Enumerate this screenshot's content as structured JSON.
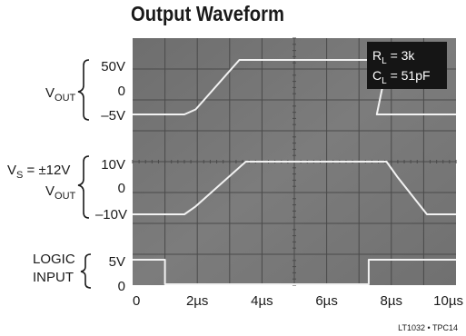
{
  "chart_data": {
    "type": "line",
    "title": "Output Waveform",
    "x_unit": "µs",
    "xlim": [
      0,
      10
    ],
    "x_tick_labels": [
      "0",
      "2µs",
      "4µs",
      "6µs",
      "8µs",
      "10µs"
    ],
    "x_tick_values": [
      0,
      2,
      4,
      6,
      8,
      10
    ],
    "annotation": {
      "rl": "R",
      "rl_sub": "L",
      "rl_val": " = 3k",
      "cl": "C",
      "cl_sub": "L",
      "cl_val": " = 51pF"
    },
    "traces": [
      {
        "label_main": "V",
        "label_sub": "OUT",
        "prefix_main": "",
        "prefix_sub": "",
        "prefix_rest": "",
        "tick_labels": [
          "50V",
          "0",
          "–5V"
        ],
        "tick_values": [
          50,
          0,
          -5
        ],
        "ylim": [
          -5,
          50
        ],
        "x": [
          0,
          1.6,
          1.95,
          3.3,
          7.9,
          7.55,
          10
        ],
        "y": [
          -5,
          -5,
          0,
          50,
          50,
          -5,
          -5
        ]
      },
      {
        "label_main": "V",
        "label_sub": "OUT",
        "prefix_main": "V",
        "prefix_sub": "S",
        "prefix_rest": " = ±12V",
        "tick_labels": [
          "10V",
          "0",
          "–10V"
        ],
        "tick_values": [
          10,
          0,
          -10
        ],
        "ylim": [
          -10,
          10
        ],
        "x": [
          0,
          1.6,
          1.95,
          3.5,
          7.85,
          8.2,
          9.1,
          10
        ],
        "y": [
          -10,
          -10,
          -7,
          10,
          10,
          4,
          -10,
          -10
        ]
      },
      {
        "label_main": "LOGIC",
        "label_line2": "INPUT",
        "tick_labels": [
          "5V",
          "0"
        ],
        "tick_values": [
          5,
          0
        ],
        "ylim": [
          0,
          5
        ],
        "x": [
          0,
          1.0,
          1.0,
          7.3,
          7.3,
          10
        ],
        "y": [
          5,
          5,
          0,
          0,
          5,
          5
        ]
      }
    ]
  },
  "footer": {
    "part_code": "LT1032 • TPC14"
  }
}
